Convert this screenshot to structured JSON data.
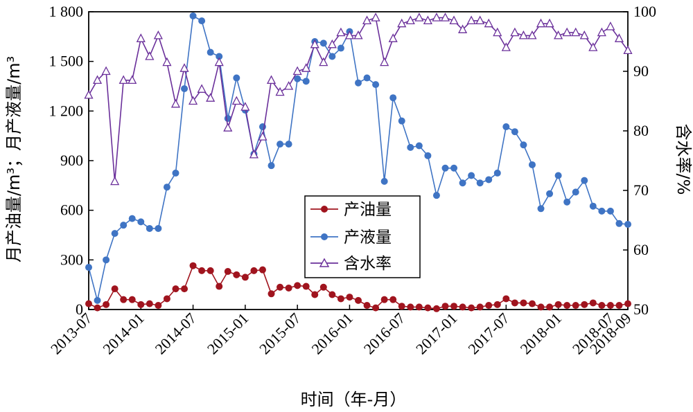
{
  "chart_data": {
    "type": "line",
    "title": "",
    "xlabel": "时间（年-月）",
    "ylabel_left": "月产油量/m³；月产液量/m³",
    "ylabel_right": "含水率/%",
    "x_tick_labels": [
      "2013-07",
      "2014-01",
      "2014-07",
      "2015-01",
      "2015-07",
      "2016-01",
      "2016-07",
      "2017-01",
      "2017-07",
      "2018-01",
      "2018-07",
      "2018-09"
    ],
    "x_tick_index": [
      0,
      6,
      12,
      18,
      24,
      30,
      36,
      42,
      48,
      54,
      60,
      62
    ],
    "y_left_ticks": [
      "0",
      "300",
      "600",
      "900",
      "1 200",
      "1 500",
      "1 800"
    ],
    "y_left_tick_values": [
      0,
      300,
      600,
      900,
      1200,
      1500,
      1800
    ],
    "y_right_ticks": [
      "50",
      "60",
      "70",
      "80",
      "90",
      "100"
    ],
    "y_right_tick_values": [
      50,
      60,
      70,
      80,
      90,
      100
    ],
    "ylim_left": [
      0,
      1800
    ],
    "ylim_right": [
      50,
      100
    ],
    "xlim": [
      0,
      62
    ],
    "grid": false,
    "legend_position": "center",
    "series": [
      {
        "name": "产油量",
        "axis": "left",
        "marker": "filled-circle",
        "color": "#a0141e",
        "x": [
          0,
          1,
          2,
          3,
          4,
          5,
          6,
          7,
          8,
          9,
          10,
          11,
          12,
          13,
          14,
          15,
          16,
          17,
          18,
          19,
          20,
          21,
          22,
          23,
          24,
          25,
          26,
          27,
          28,
          29,
          30,
          31,
          32,
          33,
          34,
          35,
          36,
          37,
          38,
          39,
          40,
          41,
          42,
          43,
          44,
          45,
          46,
          47,
          48,
          49,
          50,
          51,
          52,
          53,
          54,
          55,
          56,
          57,
          58,
          59,
          60,
          61,
          62
        ],
        "values": [
          35,
          10,
          30,
          125,
          60,
          60,
          30,
          35,
          25,
          65,
          125,
          125,
          265,
          235,
          235,
          140,
          230,
          210,
          195,
          235,
          240,
          95,
          135,
          130,
          145,
          140,
          90,
          135,
          90,
          65,
          75,
          55,
          25,
          10,
          60,
          60,
          20,
          15,
          15,
          10,
          5,
          20,
          20,
          15,
          10,
          15,
          25,
          30,
          65,
          40,
          40,
          35,
          15,
          15,
          30,
          25,
          25,
          30,
          40,
          25,
          25,
          25,
          35
        ]
      },
      {
        "name": "产液量",
        "axis": "left",
        "marker": "filled-circle",
        "color": "#3f74c4",
        "x": [
          0,
          1,
          2,
          3,
          4,
          5,
          6,
          7,
          8,
          9,
          10,
          11,
          12,
          13,
          14,
          15,
          16,
          17,
          18,
          19,
          20,
          21,
          22,
          23,
          24,
          25,
          26,
          27,
          28,
          29,
          30,
          31,
          32,
          33,
          34,
          35,
          36,
          37,
          38,
          39,
          40,
          41,
          42,
          43,
          44,
          45,
          46,
          47,
          48,
          49,
          50,
          51,
          52,
          53,
          54,
          55,
          56,
          57,
          58,
          59,
          60,
          61,
          62
        ],
        "values": [
          255,
          55,
          300,
          460,
          510,
          550,
          530,
          490,
          490,
          740,
          825,
          1335,
          1775,
          1745,
          1555,
          1530,
          1155,
          1400,
          1205,
          940,
          1105,
          870,
          1000,
          1000,
          1395,
          1380,
          1620,
          1610,
          1530,
          1580,
          1680,
          1370,
          1400,
          1360,
          775,
          1280,
          1140,
          980,
          990,
          930,
          690,
          855,
          855,
          765,
          810,
          765,
          785,
          825,
          1105,
          1075,
          995,
          875,
          610,
          700,
          810,
          650,
          710,
          780,
          625,
          595,
          595,
          520,
          515
        ]
      },
      {
        "name": "含水率",
        "axis": "right",
        "marker": "open-triangle",
        "color": "#6a2f9a",
        "x": [
          0,
          1,
          2,
          3,
          4,
          5,
          6,
          7,
          8,
          9,
          10,
          11,
          12,
          13,
          14,
          15,
          16,
          17,
          18,
          19,
          20,
          21,
          22,
          23,
          24,
          25,
          26,
          27,
          28,
          29,
          30,
          31,
          32,
          33,
          34,
          35,
          36,
          37,
          38,
          39,
          40,
          41,
          42,
          43,
          44,
          45,
          46,
          47,
          48,
          49,
          50,
          51,
          52,
          53,
          54,
          55,
          56,
          57,
          58,
          59,
          60,
          61,
          62
        ],
        "values": [
          86,
          88.5,
          90,
          71.5,
          88.5,
          88.5,
          95.5,
          92.5,
          96,
          91.5,
          84.5,
          90.5,
          85,
          87,
          85.5,
          91.5,
          80.5,
          85,
          84,
          76,
          79,
          88.5,
          86.5,
          87.5,
          90,
          90.5,
          94.5,
          91.5,
          94.5,
          96.5,
          96,
          96,
          98.5,
          99,
          91.5,
          95.5,
          98,
          98.5,
          99,
          98.5,
          99,
          99,
          98.5,
          97,
          98.5,
          98.5,
          98,
          96.5,
          94,
          96.5,
          96,
          96,
          98,
          98,
          96,
          96.5,
          96.5,
          96,
          94,
          96.5,
          97.5,
          95.5,
          93.5
        ]
      }
    ]
  }
}
